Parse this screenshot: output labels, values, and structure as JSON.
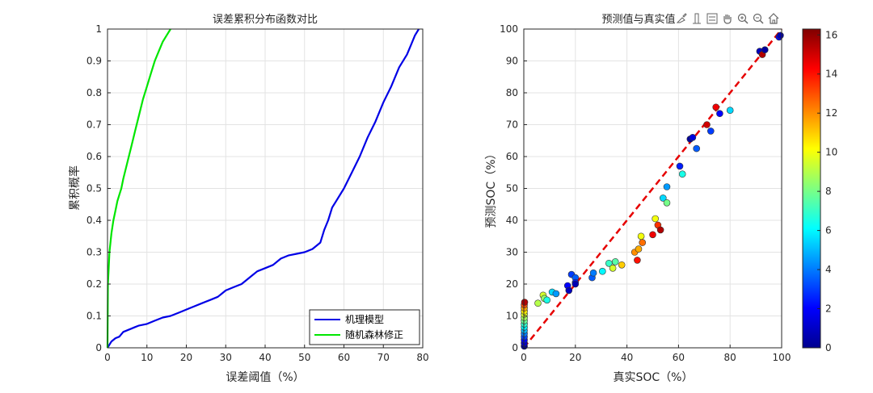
{
  "figure": {
    "left_title": "误差累积分布函数对比",
    "right_title": "预测值与真实值",
    "toolbar_icons": [
      "brush-icon",
      "insert-colorbar-icon",
      "insert-legend-icon",
      "pan-hand-icon",
      "zoom-in-icon",
      "zoom-out-icon",
      "home-icon"
    ]
  },
  "chart_data": [
    {
      "type": "line",
      "title": "误差累积分布函数对比",
      "xlabel": "误差阈值（%）",
      "ylabel": "累积概率",
      "xlim": [
        0,
        80
      ],
      "ylim": [
        0,
        1
      ],
      "xticks": [
        "0",
        "10",
        "20",
        "30",
        "40",
        "50",
        "60",
        "70",
        "80"
      ],
      "yticks": [
        "0",
        "0.1",
        "0.2",
        "0.3",
        "0.4",
        "0.5",
        "0.6",
        "0.7",
        "0.8",
        "0.9",
        "1"
      ],
      "grid": true,
      "legend_position": "bottom-right",
      "series": [
        {
          "name": "机理模型",
          "color": "#0000e6",
          "x": [
            0,
            0.5,
            1,
            2,
            3,
            4,
            5,
            6,
            7,
            8,
            10,
            12,
            14,
            16,
            18,
            20,
            22,
            24,
            26,
            28,
            29,
            30,
            32,
            34,
            35,
            36,
            37,
            38,
            40,
            42,
            43,
            44,
            46,
            48,
            50,
            52,
            54,
            55,
            56,
            57,
            58,
            60,
            62,
            64,
            66,
            68,
            70,
            72,
            74,
            76,
            77,
            78,
            79
          ],
          "y": [
            0,
            0.01,
            0.02,
            0.03,
            0.035,
            0.05,
            0.055,
            0.06,
            0.065,
            0.07,
            0.075,
            0.085,
            0.095,
            0.1,
            0.11,
            0.12,
            0.13,
            0.14,
            0.15,
            0.16,
            0.17,
            0.18,
            0.19,
            0.2,
            0.21,
            0.22,
            0.23,
            0.24,
            0.25,
            0.26,
            0.27,
            0.28,
            0.29,
            0.295,
            0.3,
            0.31,
            0.33,
            0.37,
            0.4,
            0.44,
            0.46,
            0.5,
            0.55,
            0.6,
            0.66,
            0.71,
            0.77,
            0.82,
            0.88,
            0.92,
            0.95,
            0.98,
            1.0
          ]
        },
        {
          "name": "随机森林修正",
          "color": "#00e600",
          "x": [
            0,
            0.1,
            0.3,
            0.5,
            1,
            1.5,
            2,
            2.5,
            3,
            3.5,
            4,
            5,
            6,
            7,
            8,
            9,
            10,
            11,
            12,
            13,
            14,
            15,
            16
          ],
          "y": [
            0,
            0.2,
            0.25,
            0.3,
            0.36,
            0.4,
            0.43,
            0.46,
            0.48,
            0.5,
            0.53,
            0.58,
            0.63,
            0.68,
            0.73,
            0.78,
            0.82,
            0.86,
            0.9,
            0.93,
            0.96,
            0.98,
            1.0
          ]
        }
      ]
    },
    {
      "type": "scatter",
      "title": "预测值与真实值",
      "xlabel": "真实SOC（%）",
      "ylabel": "预测SOC（%）",
      "xlim": [
        0,
        100
      ],
      "ylim": [
        0,
        100
      ],
      "xticks": [
        "0",
        "20",
        "40",
        "60",
        "80",
        "100"
      ],
      "yticks": [
        "0",
        "10",
        "20",
        "30",
        "40",
        "50",
        "60",
        "70",
        "80",
        "90",
        "100"
      ],
      "grid": true,
      "reference_line": {
        "x": [
          0,
          100
        ],
        "y": [
          0,
          100
        ],
        "color": "#e60000",
        "style": "dashed"
      },
      "colorbar": {
        "min": 0,
        "max": 16.3,
        "ticks": [
          "0",
          "2",
          "4",
          "6",
          "8",
          "10",
          "12",
          "14",
          "16"
        ],
        "colormap": "jet"
      },
      "points": [
        {
          "x": 0.2,
          "y": 0.5,
          "c": 0.3
        },
        {
          "x": 0.2,
          "y": 1.5,
          "c": 1.2
        },
        {
          "x": 0.2,
          "y": 2.5,
          "c": 2.1
        },
        {
          "x": 0.2,
          "y": 3.5,
          "c": 3.1
        },
        {
          "x": 0.2,
          "y": 4.5,
          "c": 4.0
        },
        {
          "x": 0.2,
          "y": 5.5,
          "c": 5.0
        },
        {
          "x": 0.2,
          "y": 6.5,
          "c": 6.0
        },
        {
          "x": 0.2,
          "y": 7.5,
          "c": 6.9
        },
        {
          "x": 0.2,
          "y": 8.5,
          "c": 7.8
        },
        {
          "x": 0.2,
          "y": 9.5,
          "c": 8.7
        },
        {
          "x": 0.2,
          "y": 10.5,
          "c": 9.6
        },
        {
          "x": 0.2,
          "y": 11.5,
          "c": 10.5
        },
        {
          "x": 0.2,
          "y": 12.5,
          "c": 11.6
        },
        {
          "x": 0.2,
          "y": 13.5,
          "c": 13.0
        },
        {
          "x": 0.3,
          "y": 14.3,
          "c": 15.5
        },
        {
          "x": 5.5,
          "y": 14.0,
          "c": 9.0
        },
        {
          "x": 7.5,
          "y": 16.5,
          "c": 9.5
        },
        {
          "x": 8.0,
          "y": 15.5,
          "c": 8.5
        },
        {
          "x": 9.0,
          "y": 15.0,
          "c": 6.5
        },
        {
          "x": 11.0,
          "y": 17.5,
          "c": 5.5
        },
        {
          "x": 12.5,
          "y": 17.0,
          "c": 4.5
        },
        {
          "x": 17.0,
          "y": 19.5,
          "c": 2.0
        },
        {
          "x": 17.5,
          "y": 18.0,
          "c": 1.0
        },
        {
          "x": 18.5,
          "y": 23.0,
          "c": 3.0
        },
        {
          "x": 20.0,
          "y": 22.0,
          "c": 3.5
        },
        {
          "x": 20.0,
          "y": 20.5,
          "c": 2.5
        },
        {
          "x": 20.0,
          "y": 20.0,
          "c": 0.8
        },
        {
          "x": 26.5,
          "y": 22.0,
          "c": 3.5
        },
        {
          "x": 27.0,
          "y": 23.5,
          "c": 4.0
        },
        {
          "x": 30.5,
          "y": 24.0,
          "c": 6.0
        },
        {
          "x": 33.0,
          "y": 26.5,
          "c": 7.0
        },
        {
          "x": 34.5,
          "y": 25.0,
          "c": 9.5
        },
        {
          "x": 35.5,
          "y": 27.0,
          "c": 7.5
        },
        {
          "x": 38.0,
          "y": 26.0,
          "c": 11.0
        },
        {
          "x": 43.0,
          "y": 30.0,
          "c": 12.0
        },
        {
          "x": 44.0,
          "y": 27.5,
          "c": 14.0
        },
        {
          "x": 44.5,
          "y": 31.0,
          "c": 11.5
        },
        {
          "x": 45.5,
          "y": 35.0,
          "c": 10.0
        },
        {
          "x": 46.0,
          "y": 33.0,
          "c": 12.5
        },
        {
          "x": 50.0,
          "y": 35.5,
          "c": 14.5
        },
        {
          "x": 51.0,
          "y": 40.5,
          "c": 10.0
        },
        {
          "x": 52.0,
          "y": 38.5,
          "c": 13.5
        },
        {
          "x": 53.0,
          "y": 37.0,
          "c": 15.5
        },
        {
          "x": 54.0,
          "y": 47.0,
          "c": 5.5
        },
        {
          "x": 55.5,
          "y": 45.5,
          "c": 8.0
        },
        {
          "x": 55.5,
          "y": 50.5,
          "c": 4.5
        },
        {
          "x": 60.5,
          "y": 57.0,
          "c": 2.5
        },
        {
          "x": 61.5,
          "y": 54.5,
          "c": 6.5
        },
        {
          "x": 64.5,
          "y": 65.5,
          "c": 0.5
        },
        {
          "x": 65.5,
          "y": 66.0,
          "c": 1.5
        },
        {
          "x": 67.0,
          "y": 62.5,
          "c": 3.5
        },
        {
          "x": 71.0,
          "y": 70.0,
          "c": 15.0
        },
        {
          "x": 72.5,
          "y": 68.0,
          "c": 3.0
        },
        {
          "x": 74.5,
          "y": 75.5,
          "c": 14.5
        },
        {
          "x": 76.0,
          "y": 73.5,
          "c": 2.0
        },
        {
          "x": 80.0,
          "y": 74.5,
          "c": 5.5
        },
        {
          "x": 91.5,
          "y": 93.0,
          "c": 1.0
        },
        {
          "x": 92.5,
          "y": 92.0,
          "c": 15.5
        },
        {
          "x": 93.5,
          "y": 93.5,
          "c": 0.5
        },
        {
          "x": 99.0,
          "y": 97.5,
          "c": 2.0
        },
        {
          "x": 99.5,
          "y": 98.0,
          "c": 0.8
        }
      ]
    }
  ]
}
